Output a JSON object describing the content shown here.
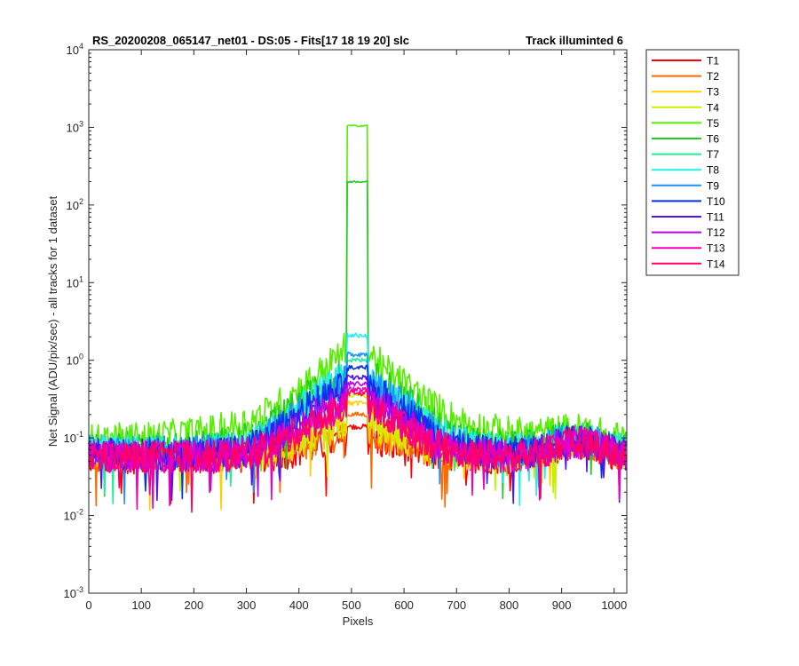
{
  "chart_data": {
    "type": "line",
    "title_left": "RS_20200208_065147_net01 - DS:05 - Fits[17   18  19  20]   slc",
    "title_right": "Track illuminted 6",
    "xlabel": "Pixels",
    "ylabel": "Net Signal (ADU/pix/sec) - all tracks for 1 dataset",
    "xlim": [
      0,
      1024
    ],
    "ylim": [
      0.001,
      10000
    ],
    "yscale": "log",
    "xticks": [
      0,
      100,
      200,
      300,
      400,
      500,
      600,
      700,
      800,
      900,
      1000
    ],
    "yticks": [
      {
        "base": "10",
        "exp": "-3",
        "value": 0.001
      },
      {
        "base": "10",
        "exp": "-2",
        "value": 0.01
      },
      {
        "base": "10",
        "exp": "-1",
        "value": 0.1
      },
      {
        "base": "10",
        "exp": "0",
        "value": 1
      },
      {
        "base": "10",
        "exp": "1",
        "value": 10
      },
      {
        "base": "10",
        "exp": "2",
        "value": 100
      },
      {
        "base": "10",
        "exp": "3",
        "value": 1000
      },
      {
        "base": "10",
        "exp": "4",
        "value": 10000
      }
    ],
    "grid": false,
    "legend_position": "outside-right",
    "series": [
      {
        "name": "T1",
        "color": "#ff0000",
        "baseline": 0.055,
        "peak": 0.14
      },
      {
        "name": "T2",
        "color": "#ff6a00",
        "baseline": 0.058,
        "peak": 0.2
      },
      {
        "name": "T3",
        "color": "#ffd000",
        "baseline": 0.06,
        "peak": 0.28
      },
      {
        "name": "T4",
        "color": "#c8f000",
        "baseline": 0.062,
        "peak": 0.35
      },
      {
        "name": "T5",
        "color": "#55ee00",
        "baseline": 0.07,
        "peak": 1050
      },
      {
        "name": "T6",
        "color": "#20cc20",
        "baseline": 0.07,
        "peak": 200
      },
      {
        "name": "T7",
        "color": "#22ee99",
        "baseline": 0.068,
        "peak": 1.0
      },
      {
        "name": "T8",
        "color": "#22eeee",
        "baseline": 0.066,
        "peak": 2.1
      },
      {
        "name": "T9",
        "color": "#1e90ff",
        "baseline": 0.064,
        "peak": 1.2
      },
      {
        "name": "T10",
        "color": "#0033ee",
        "baseline": 0.062,
        "peak": 0.8
      },
      {
        "name": "T11",
        "color": "#5511ee",
        "baseline": 0.06,
        "peak": 0.6
      },
      {
        "name": "T12",
        "color": "#bb00ee",
        "baseline": 0.058,
        "peak": 0.5
      },
      {
        "name": "T13",
        "color": "#ee00bb",
        "baseline": 0.057,
        "peak": 0.42
      },
      {
        "name": "T14",
        "color": "#ff0066",
        "baseline": 0.056,
        "peak": 0.38
      }
    ]
  }
}
